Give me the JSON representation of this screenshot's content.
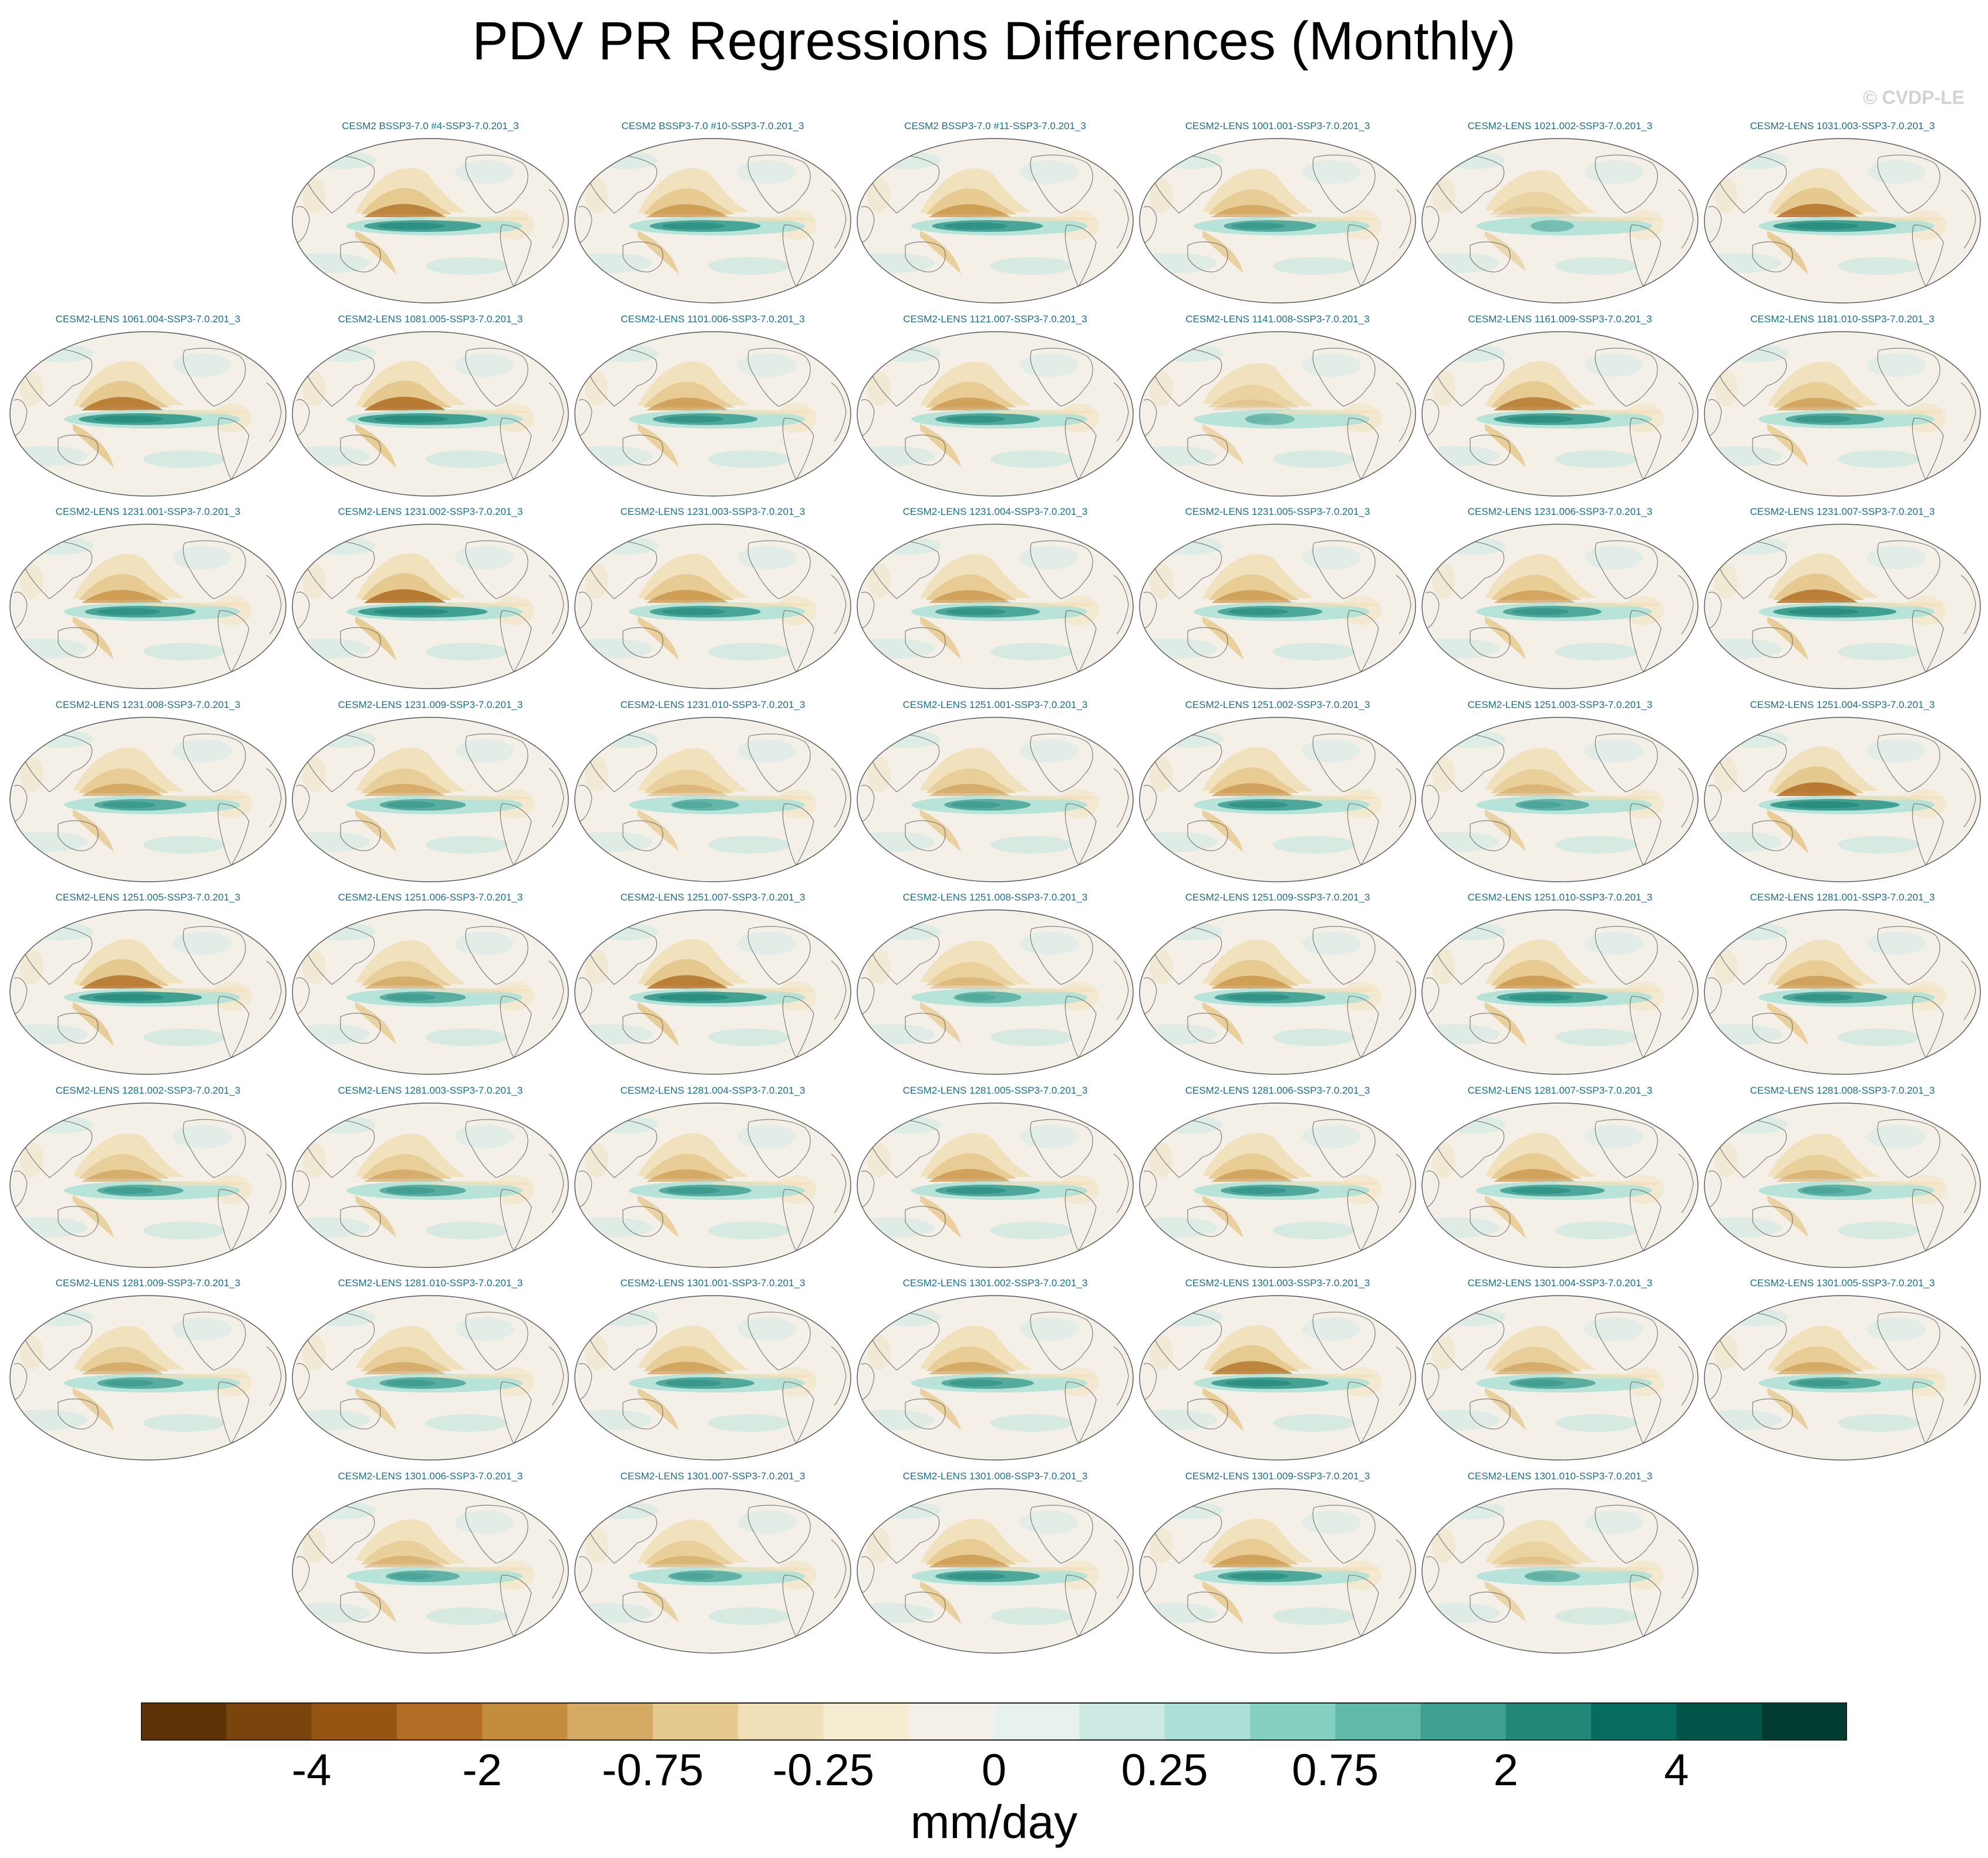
{
  "title": "PDV PR Regressions Differences (Monthly)",
  "watermark": "© CVDP-LE",
  "chart_data": {
    "type": "heatmap",
    "projection": "global map panels, Pacific-centred",
    "variable": "PR regression difference onto PDV",
    "units": "mm/day",
    "panels": [
      {
        "label": "CESM2 BSSP3-7.0 #4-SSP3-7.0.201_3",
        "row": 0,
        "col": 1,
        "strength": 0.95,
        "tilt": 0.1
      },
      {
        "label": "CESM2 BSSP3-7.0 #10-SSP3-7.0.201_3",
        "row": 0,
        "col": 2,
        "strength": 0.9,
        "tilt": 0.1
      },
      {
        "label": "CESM2 BSSP3-7.0 #11-SSP3-7.0.201_3",
        "row": 0,
        "col": 3,
        "strength": 0.9,
        "tilt": 0.0
      },
      {
        "label": "CESM2-LENS 1001.001-SSP3-7.0.201_3",
        "row": 0,
        "col": 4,
        "strength": 0.75,
        "tilt": 0.3
      },
      {
        "label": "CESM2-LENS 1021.002-SSP3-7.0.201_3",
        "row": 0,
        "col": 5,
        "strength": 0.35,
        "tilt": 0.6
      },
      {
        "label": "CESM2-LENS 1031.003-SSP3-7.0.201_3",
        "row": 0,
        "col": 6,
        "strength": 1.0,
        "tilt": 0.0
      },
      {
        "label": "CESM2-LENS 1061.004-SSP3-7.0.201_3",
        "row": 1,
        "col": 0,
        "strength": 1.0,
        "tilt": 0.0
      },
      {
        "label": "CESM2-LENS 1081.005-SSP3-7.0.201_3",
        "row": 1,
        "col": 1,
        "strength": 1.05,
        "tilt": 0.0
      },
      {
        "label": "CESM2-LENS 1101.006-SSP3-7.0.201_3",
        "row": 1,
        "col": 2,
        "strength": 0.85,
        "tilt": 0.1
      },
      {
        "label": "CESM2-LENS 1121.007-SSP3-7.0.201_3",
        "row": 1,
        "col": 3,
        "strength": 0.85,
        "tilt": 0.1
      },
      {
        "label": "CESM2-LENS 1141.008-SSP3-7.0.201_3",
        "row": 1,
        "col": 4,
        "strength": 0.4,
        "tilt": 0.6
      },
      {
        "label": "CESM2-LENS 1161.009-SSP3-7.0.201_3",
        "row": 1,
        "col": 5,
        "strength": 0.95,
        "tilt": 0.0
      },
      {
        "label": "CESM2-LENS 1181.010-SSP3-7.0.201_3",
        "row": 1,
        "col": 6,
        "strength": 0.8,
        "tilt": 0.1
      },
      {
        "label": "CESM2-LENS 1231.001-SSP3-7.0.201_3",
        "row": 2,
        "col": 0,
        "strength": 0.9,
        "tilt": 0.1
      },
      {
        "label": "CESM2-LENS 1231.002-SSP3-7.0.201_3",
        "row": 2,
        "col": 1,
        "strength": 1.05,
        "tilt": 0.0
      },
      {
        "label": "CESM2-LENS 1231.003-SSP3-7.0.201_3",
        "row": 2,
        "col": 2,
        "strength": 0.9,
        "tilt": 0.1
      },
      {
        "label": "CESM2-LENS 1231.004-SSP3-7.0.201_3",
        "row": 2,
        "col": 3,
        "strength": 0.85,
        "tilt": 0.1
      },
      {
        "label": "CESM2-LENS 1231.005-SSP3-7.0.201_3",
        "row": 2,
        "col": 4,
        "strength": 0.85,
        "tilt": 0.1
      },
      {
        "label": "CESM2-LENS 1231.006-SSP3-7.0.201_3",
        "row": 2,
        "col": 5,
        "strength": 0.8,
        "tilt": 0.1
      },
      {
        "label": "CESM2-LENS 1231.007-SSP3-7.0.201_3",
        "row": 2,
        "col": 6,
        "strength": 1.0,
        "tilt": 0.0
      },
      {
        "label": "CESM2-LENS 1231.008-SSP3-7.0.201_3",
        "row": 3,
        "col": 0,
        "strength": 0.75,
        "tilt": 0.3
      },
      {
        "label": "CESM2-LENS 1231.009-SSP3-7.0.201_3",
        "row": 3,
        "col": 1,
        "strength": 0.7,
        "tilt": 0.3
      },
      {
        "label": "CESM2-LENS 1231.010-SSP3-7.0.201_3",
        "row": 3,
        "col": 2,
        "strength": 0.55,
        "tilt": 0.3
      },
      {
        "label": "CESM2-LENS 1251.001-SSP3-7.0.201_3",
        "row": 3,
        "col": 3,
        "strength": 0.7,
        "tilt": 0.4
      },
      {
        "label": "CESM2-LENS 1251.002-SSP3-7.0.201_3",
        "row": 3,
        "col": 4,
        "strength": 0.85,
        "tilt": 0.3
      },
      {
        "label": "CESM2-LENS 1251.003-SSP3-7.0.201_3",
        "row": 3,
        "col": 5,
        "strength": 0.6,
        "tilt": 0.5
      },
      {
        "label": "CESM2-LENS 1251.004-SSP3-7.0.201_3",
        "row": 3,
        "col": 6,
        "strength": 1.05,
        "tilt": 0.0
      },
      {
        "label": "CESM2-LENS 1251.005-SSP3-7.0.201_3",
        "row": 4,
        "col": 0,
        "strength": 1.0,
        "tilt": 0.0
      },
      {
        "label": "CESM2-LENS 1251.006-SSP3-7.0.201_3",
        "row": 4,
        "col": 1,
        "strength": 0.7,
        "tilt": 0.4
      },
      {
        "label": "CESM2-LENS 1251.007-SSP3-7.0.201_3",
        "row": 4,
        "col": 2,
        "strength": 1.0,
        "tilt": 0.0
      },
      {
        "label": "CESM2-LENS 1251.008-SSP3-7.0.201_3",
        "row": 4,
        "col": 3,
        "strength": 0.55,
        "tilt": 0.5
      },
      {
        "label": "CESM2-LENS 1251.009-SSP3-7.0.201_3",
        "row": 4,
        "col": 4,
        "strength": 0.9,
        "tilt": 0.2
      },
      {
        "label": "CESM2-LENS 1251.010-SSP3-7.0.201_3",
        "row": 4,
        "col": 5,
        "strength": 0.9,
        "tilt": 0.1
      },
      {
        "label": "CESM2-LENS 1281.001-SSP3-7.0.201_3",
        "row": 4,
        "col": 6,
        "strength": 0.85,
        "tilt": 0.1
      },
      {
        "label": "CESM2-LENS 1281.002-SSP3-7.0.201_3",
        "row": 5,
        "col": 0,
        "strength": 0.7,
        "tilt": 0.2
      },
      {
        "label": "CESM2-LENS 1281.003-SSP3-7.0.201_3",
        "row": 5,
        "col": 1,
        "strength": 0.7,
        "tilt": 0.2
      },
      {
        "label": "CESM2-LENS 1281.004-SSP3-7.0.201_3",
        "row": 5,
        "col": 2,
        "strength": 0.75,
        "tilt": 0.3
      },
      {
        "label": "CESM2-LENS 1281.005-SSP3-7.0.201_3",
        "row": 5,
        "col": 3,
        "strength": 0.85,
        "tilt": 0.2
      },
      {
        "label": "CESM2-LENS 1281.006-SSP3-7.0.201_3",
        "row": 5,
        "col": 4,
        "strength": 0.8,
        "tilt": 0.3
      },
      {
        "label": "CESM2-LENS 1281.007-SSP3-7.0.201_3",
        "row": 5,
        "col": 5,
        "strength": 0.85,
        "tilt": 0.2
      },
      {
        "label": "CESM2-LENS 1281.008-SSP3-7.0.201_3",
        "row": 5,
        "col": 6,
        "strength": 0.6,
        "tilt": 0.2
      },
      {
        "label": "CESM2-LENS 1281.009-SSP3-7.0.201_3",
        "row": 6,
        "col": 0,
        "strength": 0.7,
        "tilt": 0.2
      },
      {
        "label": "CESM2-LENS 1281.010-SSP3-7.0.201_3",
        "row": 6,
        "col": 1,
        "strength": 0.7,
        "tilt": 0.4
      },
      {
        "label": "CESM2-LENS 1301.001-SSP3-7.0.201_3",
        "row": 6,
        "col": 2,
        "strength": 0.8,
        "tilt": 0.5
      },
      {
        "label": "CESM2-LENS 1301.002-SSP3-7.0.201_3",
        "row": 6,
        "col": 3,
        "strength": 0.75,
        "tilt": 0.3
      },
      {
        "label": "CESM2-LENS 1301.003-SSP3-7.0.201_3",
        "row": 6,
        "col": 4,
        "strength": 0.95,
        "tilt": 0.1
      },
      {
        "label": "CESM2-LENS 1301.004-SSP3-7.0.201_3",
        "row": 6,
        "col": 5,
        "strength": 0.7,
        "tilt": 0.2
      },
      {
        "label": "CESM2-LENS 1301.005-SSP3-7.0.201_3",
        "row": 6,
        "col": 6,
        "strength": 0.75,
        "tilt": 0.1
      },
      {
        "label": "CESM2-LENS 1301.006-SSP3-7.0.201_3",
        "row": 7,
        "col": 1,
        "strength": 0.6,
        "tilt": 0.6
      },
      {
        "label": "CESM2-LENS 1301.007-SSP3-7.0.201_3",
        "row": 7,
        "col": 2,
        "strength": 0.6,
        "tilt": 0.2
      },
      {
        "label": "CESM2-LENS 1301.008-SSP3-7.0.201_3",
        "row": 7,
        "col": 3,
        "strength": 0.85,
        "tilt": 0.1
      },
      {
        "label": "CESM2-LENS 1301.009-SSP3-7.0.201_3",
        "row": 7,
        "col": 4,
        "strength": 0.85,
        "tilt": 0.1
      },
      {
        "label": "CESM2-LENS 1301.010-SSP3-7.0.201_3",
        "row": 7,
        "col": 5,
        "strength": 0.45,
        "tilt": 0.2
      }
    ],
    "colorbar": {
      "label": "mm/day",
      "colors": [
        "#5c3307",
        "#7a440d",
        "#965513",
        "#b06d23",
        "#c48c3d",
        "#d4aa64",
        "#e6c98e",
        "#f1dfb8",
        "#f6ecd2",
        "#f4f0e8",
        "#e7f1ee",
        "#cde9e3",
        "#ace0d6",
        "#85d0c0",
        "#60b9a9",
        "#40a092",
        "#218779",
        "#066c5f",
        "#005549",
        "#003b30"
      ],
      "tick_labels": [
        {
          "text": "-4",
          "boundary": 2
        },
        {
          "text": "-2",
          "boundary": 4
        },
        {
          "text": "-0.75",
          "boundary": 6
        },
        {
          "text": "-0.25",
          "boundary": 8
        },
        {
          "text": "0",
          "boundary": 10
        },
        {
          "text": "0.25",
          "boundary": 12
        },
        {
          "text": "0.75",
          "boundary": 14
        },
        {
          "text": "2",
          "boundary": 16
        },
        {
          "text": "4",
          "boundary": 18
        }
      ]
    }
  }
}
